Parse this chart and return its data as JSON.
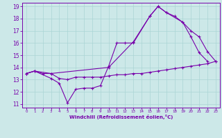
{
  "xlabel": "Windchill (Refroidissement éolien,°C)",
  "bg_color": "#cce8e8",
  "grid_color": "#aad4d4",
  "line_color": "#7700aa",
  "xlim": [
    0,
    23
  ],
  "ylim": [
    11,
    19
  ],
  "xticks": [
    0,
    1,
    2,
    3,
    4,
    5,
    6,
    7,
    8,
    9,
    10,
    11,
    12,
    13,
    14,
    15,
    16,
    17,
    18,
    19,
    20,
    21,
    22,
    23
  ],
  "yticks": [
    11,
    12,
    13,
    14,
    15,
    16,
    17,
    18,
    19
  ],
  "series1_x": [
    0,
    1,
    2,
    3,
    4,
    5,
    6,
    7,
    8,
    9,
    10,
    11,
    12,
    13,
    14,
    15,
    16,
    17,
    18,
    19,
    20,
    21,
    22,
    23
  ],
  "series1_y": [
    13.5,
    13.7,
    13.5,
    13.5,
    13.1,
    13.0,
    13.2,
    13.2,
    13.2,
    13.2,
    13.3,
    13.4,
    13.4,
    13.5,
    13.5,
    13.6,
    13.7,
    13.8,
    13.9,
    14.0,
    14.1,
    14.2,
    14.3,
    14.5
  ],
  "series2_x": [
    0,
    1,
    3,
    4,
    5,
    6,
    7,
    8,
    9,
    10,
    11,
    12,
    13,
    15,
    16,
    17,
    18,
    19,
    20,
    21,
    22
  ],
  "series2_y": [
    13.5,
    13.7,
    13.1,
    12.7,
    11.1,
    12.2,
    12.3,
    12.3,
    12.5,
    14.1,
    16.0,
    16.0,
    16.0,
    18.2,
    19.0,
    18.5,
    18.2,
    17.7,
    16.5,
    15.2,
    14.5
  ],
  "series3_x": [
    0,
    1,
    3,
    10,
    13,
    15,
    16,
    17,
    19,
    20,
    21,
    22,
    23
  ],
  "series3_y": [
    13.5,
    13.7,
    13.5,
    14.0,
    16.1,
    18.2,
    19.0,
    18.5,
    17.7,
    17.0,
    16.5,
    15.3,
    14.5
  ]
}
